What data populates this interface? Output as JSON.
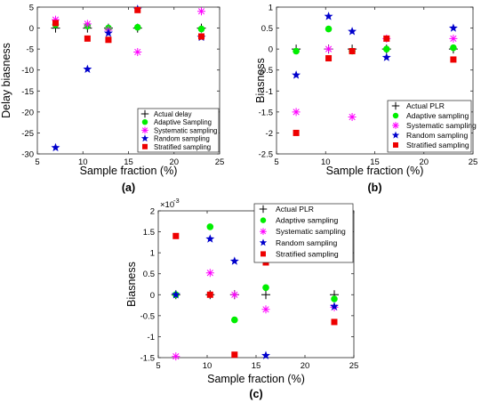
{
  "colors": {
    "actual": "#000000",
    "adaptive": "#00ee00",
    "systematic": "#ff00ff",
    "random": "#0000cc",
    "stratified": "#ee0000"
  },
  "chart_data": [
    {
      "panel_label": "(a)",
      "type": "scatter",
      "xlabel": "Sample fraction (%)",
      "ylabel": "Delay biasness",
      "xlim": [
        5,
        25
      ],
      "ylim": [
        -30,
        5
      ],
      "xticks": [
        "5",
        "10",
        "15",
        "20",
        "25"
      ],
      "yticks": [
        "5",
        "0",
        "-5",
        "-10",
        "-15",
        "-20",
        "-25",
        "-30"
      ],
      "legend_position": "bottom-right",
      "series": [
        {
          "name": "Actual delay",
          "marker": "plus",
          "points": [
            [
              7,
              0
            ],
            [
              10.5,
              0
            ],
            [
              12.8,
              0
            ],
            [
              16,
              0
            ],
            [
              23,
              0
            ]
          ]
        },
        {
          "name": "Adaptive Sampling",
          "marker": "circle",
          "points": [
            [
              7,
              0.8
            ],
            [
              10.5,
              0.5
            ],
            [
              12.8,
              0
            ],
            [
              16,
              0.2
            ],
            [
              23,
              -0.2
            ]
          ]
        },
        {
          "name": "Systematic sampling",
          "marker": "asterisk",
          "points": [
            [
              7,
              2
            ],
            [
              10.5,
              1
            ],
            [
              12.8,
              -0.5
            ],
            [
              16,
              -5.7
            ],
            [
              23,
              4
            ]
          ]
        },
        {
          "name": "Random sampling",
          "marker": "star",
          "points": [
            [
              7,
              -28.5
            ],
            [
              10.5,
              -9.8
            ],
            [
              12.8,
              -1.2
            ],
            [
              16,
              4.5
            ],
            [
              23,
              -2.2
            ]
          ]
        },
        {
          "name": "Stratified sampling",
          "marker": "square",
          "points": [
            [
              7,
              1.2
            ],
            [
              10.5,
              -2.5
            ],
            [
              12.8,
              -2.8
            ],
            [
              16,
              4.3
            ],
            [
              23,
              -2.0
            ]
          ]
        }
      ]
    },
    {
      "panel_label": "(b)",
      "type": "scatter",
      "xlabel": "Sample fraction (%)",
      "ylabel": "Biasness",
      "xlim": [
        5,
        25
      ],
      "ylim": [
        -2.5,
        1
      ],
      "xticks": [
        "5",
        "10",
        "15",
        "20",
        "25"
      ],
      "yticks": [
        "1",
        "0.5",
        "0",
        "-0.5",
        "-1",
        "-1.5",
        "-2",
        "-2.5"
      ],
      "legend_position": "bottom-right",
      "series": [
        {
          "name": "Actual PLR",
          "marker": "plus",
          "points": [
            [
              7,
              0
            ],
            [
              10.3,
              0
            ],
            [
              12.7,
              0
            ],
            [
              16.2,
              0
            ],
            [
              23,
              0
            ]
          ]
        },
        {
          "name": "Adaptive sampling",
          "marker": "circle",
          "points": [
            [
              7,
              -0.05
            ],
            [
              10.3,
              0.48
            ],
            [
              12.7,
              -0.05
            ],
            [
              16.2,
              0
            ],
            [
              23,
              0.03
            ]
          ]
        },
        {
          "name": "Systematic sampling",
          "marker": "asterisk",
          "points": [
            [
              7,
              -1.5
            ],
            [
              10.3,
              0
            ],
            [
              12.7,
              -1.62
            ],
            [
              16.2,
              0.25
            ],
            [
              23,
              0.25
            ]
          ]
        },
        {
          "name": "Random sampling",
          "marker": "star",
          "points": [
            [
              7,
              -0.62
            ],
            [
              10.3,
              0.78
            ],
            [
              12.7,
              0.42
            ],
            [
              16.2,
              -0.2
            ],
            [
              23,
              0.5
            ]
          ]
        },
        {
          "name": "Stratified sampling",
          "marker": "square",
          "points": [
            [
              7,
              -2
            ],
            [
              10.3,
              -0.22
            ],
            [
              12.7,
              -0.05
            ],
            [
              16.2,
              0.25
            ],
            [
              23,
              -0.25
            ]
          ]
        }
      ]
    },
    {
      "panel_label": "(c)",
      "type": "scatter",
      "xlabel": "Sample fraction (%)",
      "ylabel": "Biasness",
      "exponent_label": "×10",
      "exponent_power": "-3",
      "xlim": [
        5,
        25
      ],
      "ylim": [
        -1.5,
        2
      ],
      "xticks": [
        "5",
        "10",
        "15",
        "20",
        "25"
      ],
      "yticks": [
        "2",
        "1.5",
        "1",
        "0.5",
        "0",
        "-0.5",
        "-1",
        "-1.5"
      ],
      "legend_position": "top-right",
      "series": [
        {
          "name": "Actual PLR",
          "marker": "plus",
          "points": [
            [
              6.8,
              0
            ],
            [
              10.3,
              0
            ],
            [
              12.8,
              0
            ],
            [
              16,
              0
            ],
            [
              23,
              0
            ]
          ]
        },
        {
          "name": "Adaptive sampling",
          "marker": "circle",
          "points": [
            [
              6.8,
              0
            ],
            [
              10.3,
              1.62
            ],
            [
              12.8,
              -0.6
            ],
            [
              16,
              0.17
            ],
            [
              23,
              -0.1
            ]
          ]
        },
        {
          "name": "Systematic sampling",
          "marker": "asterisk",
          "points": [
            [
              6.8,
              -1.47
            ],
            [
              10.3,
              0.52
            ],
            [
              12.8,
              0
            ],
            [
              16,
              -0.35
            ],
            [
              23,
              -0.3
            ]
          ]
        },
        {
          "name": "Random sampling",
          "marker": "star",
          "points": [
            [
              6.8,
              0
            ],
            [
              10.3,
              1.33
            ],
            [
              12.8,
              0.8
            ],
            [
              16,
              -1.45
            ],
            [
              23,
              -0.28
            ]
          ]
        },
        {
          "name": "Stratified sampling",
          "marker": "square",
          "points": [
            [
              6.8,
              1.4
            ],
            [
              10.3,
              0
            ],
            [
              12.8,
              -1.43
            ],
            [
              16,
              0.77
            ],
            [
              23,
              -0.65
            ]
          ]
        }
      ]
    }
  ]
}
